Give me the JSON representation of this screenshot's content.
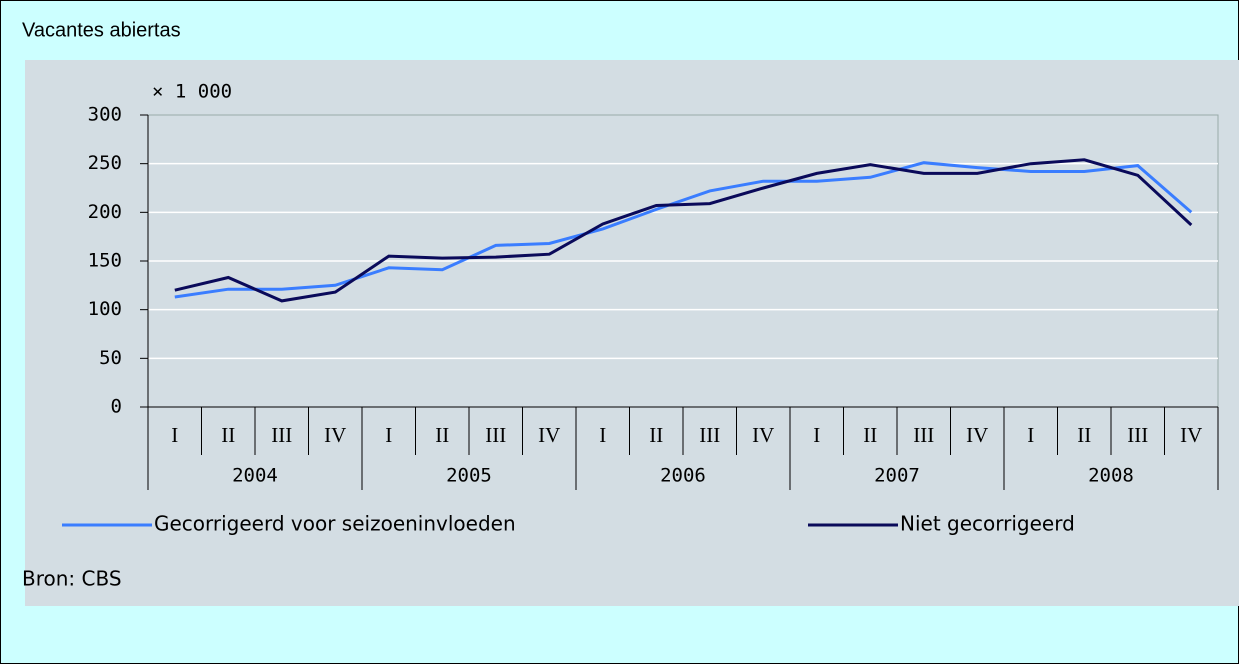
{
  "title": "Vacantes abiertas",
  "chart_data": {
    "type": "line",
    "y_unit": "× 1 000",
    "categories": [
      "I",
      "II",
      "III",
      "IV",
      "I",
      "II",
      "III",
      "IV",
      "I",
      "II",
      "III",
      "IV",
      "I",
      "II",
      "III",
      "IV",
      "I",
      "II",
      "III",
      "IV"
    ],
    "years": [
      "2004",
      "2005",
      "2006",
      "2007",
      "2008"
    ],
    "series": [
      {
        "name": "Gecorrigeerd voor seizoeninvloeden",
        "color": "#3a7dff",
        "values": [
          113,
          121,
          121,
          125,
          143,
          141,
          166,
          168,
          183,
          203,
          222,
          232,
          232,
          236,
          251,
          246,
          242,
          242,
          248,
          200
        ]
      },
      {
        "name": "Niet gecorrigeerd",
        "color": "#0a0a5a",
        "values": [
          120,
          133,
          109,
          118,
          155,
          153,
          154,
          157,
          188,
          207,
          209,
          225,
          240,
          249,
          240,
          240,
          250,
          254,
          238,
          187
        ]
      }
    ],
    "ylim": [
      0,
      300
    ],
    "yticks": [
      0,
      50,
      100,
      150,
      200,
      250,
      300
    ],
    "grid": true
  },
  "source": "Bron: CBS"
}
